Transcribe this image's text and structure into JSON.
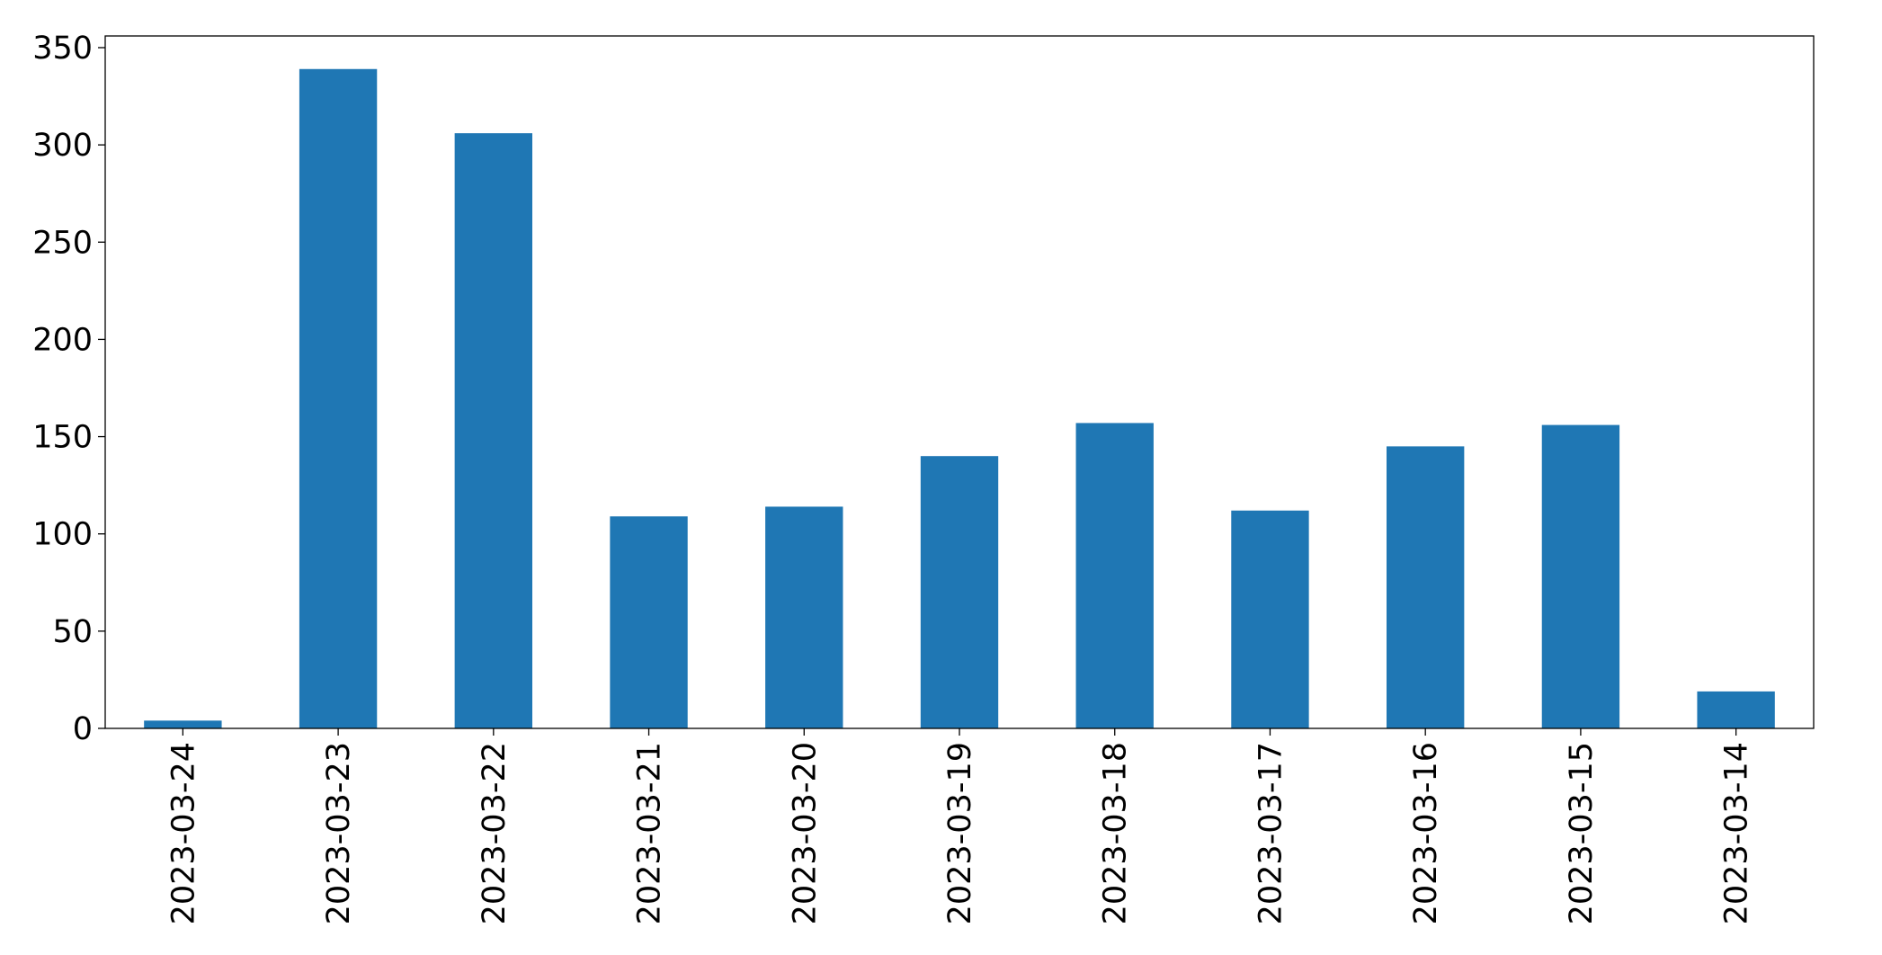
{
  "chart_data": {
    "type": "bar",
    "title": "",
    "xlabel": "",
    "ylabel": "",
    "categories": [
      "2023-03-24",
      "2023-03-23",
      "2023-03-22",
      "2023-03-21",
      "2023-03-20",
      "2023-03-19",
      "2023-03-18",
      "2023-03-17",
      "2023-03-16",
      "2023-03-15",
      "2023-03-14"
    ],
    "values": [
      4,
      339,
      306,
      109,
      114,
      140,
      157,
      112,
      145,
      156,
      19
    ],
    "ylim": [
      0,
      356
    ],
    "yticks": [
      0,
      50,
      100,
      150,
      200,
      250,
      300,
      350
    ],
    "bar_color": "#1f77b4",
    "grid": false,
    "legend": "none"
  }
}
